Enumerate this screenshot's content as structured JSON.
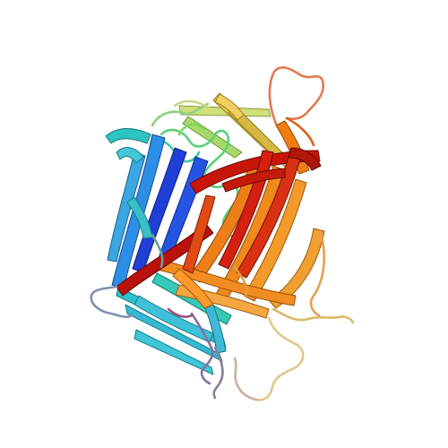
{
  "image": {
    "subject": "protein-ribbon",
    "background": "#ffffff",
    "palette": {
      "blue": "#1f3fd6",
      "azure": "#2f7fe6",
      "cyan": "#37c2d4",
      "teal": "#3ec9a6",
      "green": "#6fd46a",
      "lime": "#b8d96a",
      "yellow": "#e6cf4e",
      "orange": "#f08a1c",
      "orange_red": "#e4580f",
      "red": "#c8160a"
    }
  }
}
